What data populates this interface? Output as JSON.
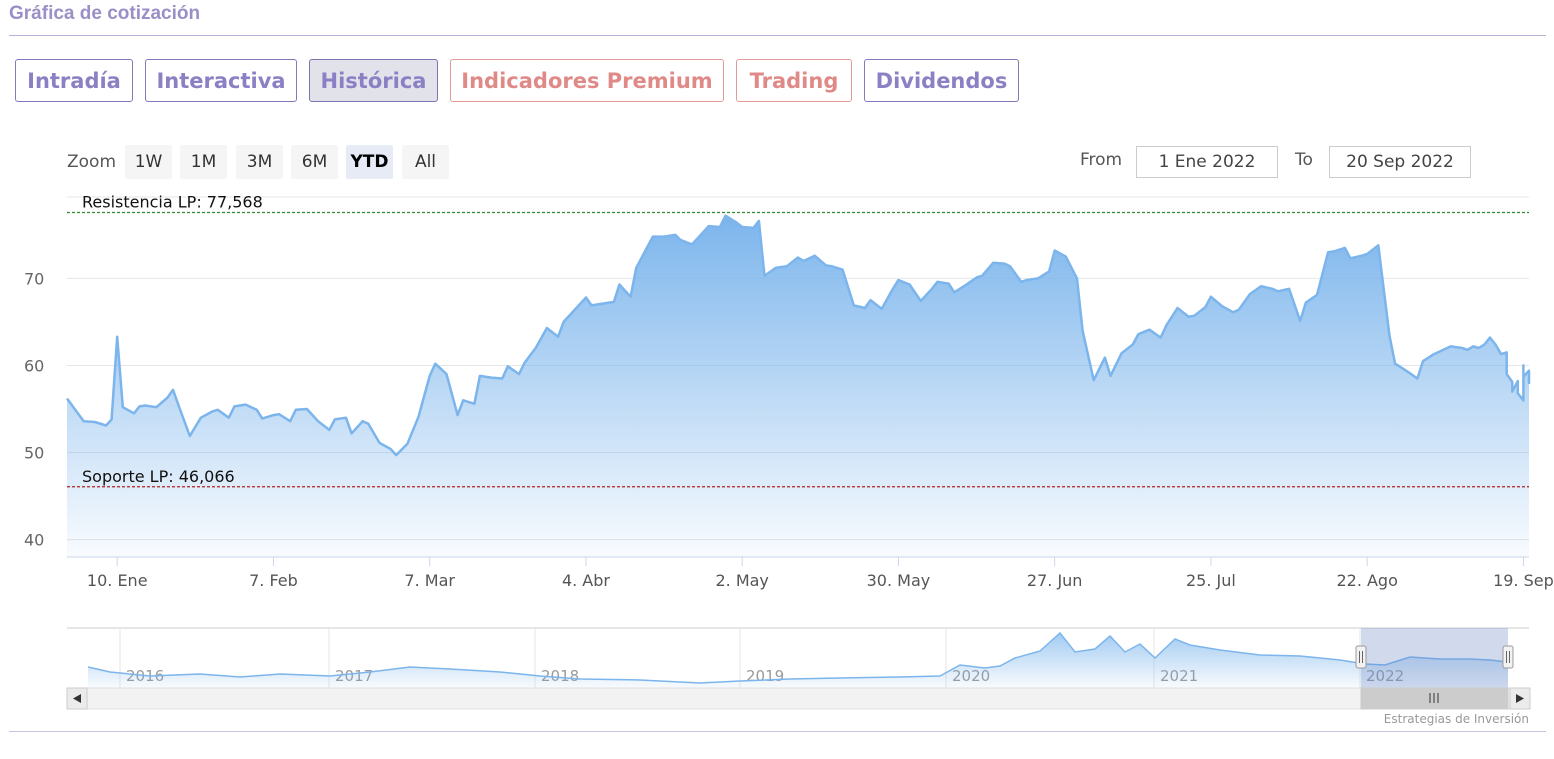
{
  "header": {
    "title": "Gráfica de cotización"
  },
  "tabs": [
    {
      "label": "Intradía",
      "tone": "purple",
      "active": false
    },
    {
      "label": "Interactiva",
      "tone": "purple",
      "active": false
    },
    {
      "label": "Histórica",
      "tone": "purple",
      "active": true
    },
    {
      "label": "Indicadores Premium",
      "tone": "red",
      "active": false
    },
    {
      "label": "Trading",
      "tone": "red",
      "active": false
    },
    {
      "label": "Dividendos",
      "tone": "purple",
      "active": false
    }
  ],
  "range_selector": {
    "zoom_label": "Zoom",
    "buttons": [
      "1W",
      "1M",
      "3M",
      "6M",
      "YTD",
      "All"
    ],
    "selected": "YTD",
    "from_label": "From",
    "from_value": "1 Ene 2022",
    "to_label": "To",
    "to_value": "20 Sep 2022"
  },
  "colors": {
    "line": "#7cb5ec",
    "resistance": "#2e8b2e",
    "support": "#b22222",
    "accent": "#9b8fc8"
  },
  "chart_data": {
    "type": "area",
    "title": "",
    "xlabel": "",
    "ylabel": "",
    "ylim": [
      38,
      79
    ],
    "yticks": [
      40,
      50,
      60,
      70
    ],
    "grid": true,
    "xlim": [
      "2022-01-01",
      "2022-09-20"
    ],
    "xticks": [
      {
        "date": "2022-01-10",
        "label": "10. Ene"
      },
      {
        "date": "2022-02-07",
        "label": "7. Feb"
      },
      {
        "date": "2022-03-07",
        "label": "7. Mar"
      },
      {
        "date": "2022-04-04",
        "label": "4. Abr"
      },
      {
        "date": "2022-05-02",
        "label": "2. May"
      },
      {
        "date": "2022-05-30",
        "label": "30. May"
      },
      {
        "date": "2022-06-27",
        "label": "27. Jun"
      },
      {
        "date": "2022-07-25",
        "label": "25. Jul"
      },
      {
        "date": "2022-08-22",
        "label": "22. Ago"
      },
      {
        "date": "2022-09-19",
        "label": "19. Sep"
      }
    ],
    "reference_lines": [
      {
        "label": "Resistencia LP: 77,568",
        "value": 77.568,
        "color": "#2e8b2e"
      },
      {
        "label": "Soporte LP: 46,066",
        "value": 46.066,
        "color": "#b22222"
      }
    ],
    "series": [
      {
        "points": [
          [
            "2022-01-01",
            56.2
          ],
          [
            "2022-01-04",
            53.6
          ],
          [
            "2022-01-06",
            53.5
          ],
          [
            "2022-01-08",
            53.1
          ],
          [
            "2022-01-09",
            53.8
          ],
          [
            "2022-01-10",
            63.3
          ],
          [
            "2022-01-11",
            55.2
          ],
          [
            "2022-01-13",
            54.5
          ],
          [
            "2022-01-14",
            55.3
          ],
          [
            "2022-01-15",
            55.4
          ],
          [
            "2022-01-17",
            55.2
          ],
          [
            "2022-01-19",
            56.3
          ],
          [
            "2022-01-20",
            57.2
          ],
          [
            "2022-01-21",
            55.4
          ],
          [
            "2022-01-23",
            51.9
          ],
          [
            "2022-01-25",
            54.0
          ],
          [
            "2022-01-27",
            54.7
          ],
          [
            "2022-01-28",
            54.9
          ],
          [
            "2022-01-30",
            54.0
          ],
          [
            "2022-01-31",
            55.3
          ],
          [
            "2022-02-02",
            55.5
          ],
          [
            "2022-02-04",
            54.9
          ],
          [
            "2022-02-05",
            53.9
          ],
          [
            "2022-02-07",
            54.3
          ],
          [
            "2022-02-08",
            54.4
          ],
          [
            "2022-02-10",
            53.6
          ],
          [
            "2022-02-11",
            54.9
          ],
          [
            "2022-02-13",
            55.0
          ],
          [
            "2022-02-15",
            53.6
          ],
          [
            "2022-02-17",
            52.6
          ],
          [
            "2022-02-18",
            53.8
          ],
          [
            "2022-02-20",
            54.0
          ],
          [
            "2022-02-21",
            52.2
          ],
          [
            "2022-02-23",
            53.6
          ],
          [
            "2022-02-24",
            53.3
          ],
          [
            "2022-02-26",
            51.1
          ],
          [
            "2022-02-28",
            50.4
          ],
          [
            "2022-03-01",
            49.7
          ],
          [
            "2022-03-03",
            51.0
          ],
          [
            "2022-03-05",
            54.1
          ],
          [
            "2022-03-07",
            58.8
          ],
          [
            "2022-03-08",
            60.2
          ],
          [
            "2022-03-10",
            59.0
          ],
          [
            "2022-03-12",
            54.3
          ],
          [
            "2022-03-13",
            56.0
          ],
          [
            "2022-03-15",
            55.6
          ],
          [
            "2022-03-16",
            58.8
          ],
          [
            "2022-03-18",
            58.6
          ],
          [
            "2022-03-20",
            58.5
          ],
          [
            "2022-03-21",
            59.9
          ],
          [
            "2022-03-23",
            59.0
          ],
          [
            "2022-03-24",
            60.3
          ],
          [
            "2022-03-26",
            62.0
          ],
          [
            "2022-03-28",
            64.3
          ],
          [
            "2022-03-30",
            63.3
          ],
          [
            "2022-03-31",
            65.0
          ],
          [
            "2022-04-02",
            66.4
          ],
          [
            "2022-04-04",
            67.8
          ],
          [
            "2022-04-05",
            66.9
          ],
          [
            "2022-04-07",
            67.1
          ],
          [
            "2022-04-09",
            67.3
          ],
          [
            "2022-04-10",
            69.3
          ],
          [
            "2022-04-12",
            67.9
          ],
          [
            "2022-04-13",
            71.2
          ],
          [
            "2022-04-15",
            73.6
          ],
          [
            "2022-04-16",
            74.8
          ],
          [
            "2022-04-18",
            74.8
          ],
          [
            "2022-04-20",
            75.0
          ],
          [
            "2022-04-21",
            74.4
          ],
          [
            "2022-04-23",
            73.9
          ],
          [
            "2022-04-24",
            74.6
          ],
          [
            "2022-04-26",
            76.0
          ],
          [
            "2022-04-28",
            75.9
          ],
          [
            "2022-04-29",
            77.2
          ],
          [
            "2022-05-01",
            76.4
          ],
          [
            "2022-05-02",
            75.9
          ],
          [
            "2022-05-04",
            75.8
          ],
          [
            "2022-05-05",
            76.6
          ],
          [
            "2022-05-06",
            70.3
          ],
          [
            "2022-05-08",
            71.2
          ],
          [
            "2022-05-10",
            71.4
          ],
          [
            "2022-05-12",
            72.4
          ],
          [
            "2022-05-13",
            72.0
          ],
          [
            "2022-05-15",
            72.6
          ],
          [
            "2022-05-17",
            71.5
          ],
          [
            "2022-05-18",
            71.4
          ],
          [
            "2022-05-20",
            71.0
          ],
          [
            "2022-05-22",
            66.9
          ],
          [
            "2022-05-24",
            66.6
          ],
          [
            "2022-05-25",
            67.5
          ],
          [
            "2022-05-27",
            66.5
          ],
          [
            "2022-05-29",
            68.8
          ],
          [
            "2022-05-30",
            69.8
          ],
          [
            "2022-06-01",
            69.3
          ],
          [
            "2022-06-03",
            67.4
          ],
          [
            "2022-06-05",
            68.8
          ],
          [
            "2022-06-06",
            69.6
          ],
          [
            "2022-06-08",
            69.4
          ],
          [
            "2022-06-09",
            68.4
          ],
          [
            "2022-06-11",
            69.2
          ],
          [
            "2022-06-13",
            70.1
          ],
          [
            "2022-06-14",
            70.3
          ],
          [
            "2022-06-16",
            71.8
          ],
          [
            "2022-06-18",
            71.7
          ],
          [
            "2022-06-19",
            71.4
          ],
          [
            "2022-06-21",
            69.6
          ],
          [
            "2022-06-22",
            69.8
          ],
          [
            "2022-06-24",
            70.0
          ],
          [
            "2022-06-26",
            70.8
          ],
          [
            "2022-06-27",
            73.2
          ],
          [
            "2022-06-29",
            72.5
          ],
          [
            "2022-07-01",
            70.0
          ],
          [
            "2022-07-02",
            64.0
          ],
          [
            "2022-07-04",
            58.3
          ],
          [
            "2022-07-06",
            60.9
          ],
          [
            "2022-07-07",
            58.8
          ],
          [
            "2022-07-09",
            61.4
          ],
          [
            "2022-07-11",
            62.4
          ],
          [
            "2022-07-12",
            63.6
          ],
          [
            "2022-07-14",
            64.1
          ],
          [
            "2022-07-16",
            63.2
          ],
          [
            "2022-07-17",
            64.6
          ],
          [
            "2022-07-19",
            66.6
          ],
          [
            "2022-07-21",
            65.6
          ],
          [
            "2022-07-22",
            65.7
          ],
          [
            "2022-07-24",
            66.7
          ],
          [
            "2022-07-25",
            67.9
          ],
          [
            "2022-07-27",
            66.8
          ],
          [
            "2022-07-29",
            66.1
          ],
          [
            "2022-07-30",
            66.4
          ],
          [
            "2022-08-01",
            68.2
          ],
          [
            "2022-08-03",
            69.1
          ],
          [
            "2022-08-05",
            68.8
          ],
          [
            "2022-08-06",
            68.5
          ],
          [
            "2022-08-08",
            68.8
          ],
          [
            "2022-08-10",
            65.1
          ],
          [
            "2022-08-11",
            67.2
          ],
          [
            "2022-08-13",
            68.1
          ],
          [
            "2022-08-15",
            73.0
          ],
          [
            "2022-08-16",
            73.1
          ],
          [
            "2022-08-18",
            73.5
          ],
          [
            "2022-08-19",
            72.3
          ],
          [
            "2022-08-21",
            72.6
          ],
          [
            "2022-08-22",
            72.8
          ],
          [
            "2022-08-24",
            73.8
          ],
          [
            "2022-08-26",
            63.4
          ],
          [
            "2022-08-27",
            60.2
          ],
          [
            "2022-08-29",
            59.4
          ],
          [
            "2022-08-31",
            58.5
          ],
          [
            "2022-09-01",
            60.5
          ],
          [
            "2022-09-03",
            61.3
          ],
          [
            "2022-09-04",
            61.6
          ],
          [
            "2022-09-06",
            62.2
          ],
          [
            "2022-09-08",
            62.0
          ],
          [
            "2022-09-09",
            61.8
          ],
          [
            "2022-09-10",
            62.2
          ],
          [
            "2022-09-11",
            62.0
          ],
          [
            "2022-09-12",
            62.4
          ],
          [
            "2022-09-13",
            63.2
          ],
          [
            "2022-09-14",
            62.4
          ],
          [
            "2022-09-15",
            61.3
          ],
          [
            "2022-09-16",
            61.5
          ],
          [
            "2022-09-16",
            59.0
          ],
          [
            "2022-09-17",
            58.1
          ],
          [
            "2022-09-17",
            57.0
          ],
          [
            "2022-09-18",
            58.2
          ],
          [
            "2022-09-18",
            56.8
          ],
          [
            "2022-09-19",
            56.0
          ],
          [
            "2022-09-19",
            58.0
          ],
          [
            "2022-09-19",
            60.0
          ],
          [
            "2022-09-19",
            58.7
          ],
          [
            "2022-09-20",
            59.4
          ],
          [
            "2022-09-20",
            58.8
          ],
          [
            "2022-09-20",
            59.0
          ],
          [
            "2022-09-20",
            58.0
          ],
          [
            "2022-09-20",
            58.1
          ]
        ]
      }
    ],
    "navigator": {
      "year_labels": [
        "2016",
        "2017",
        "2018",
        "2019",
        "2020",
        "2021",
        "2022"
      ]
    },
    "credit": "Estrategias de Inversión"
  }
}
